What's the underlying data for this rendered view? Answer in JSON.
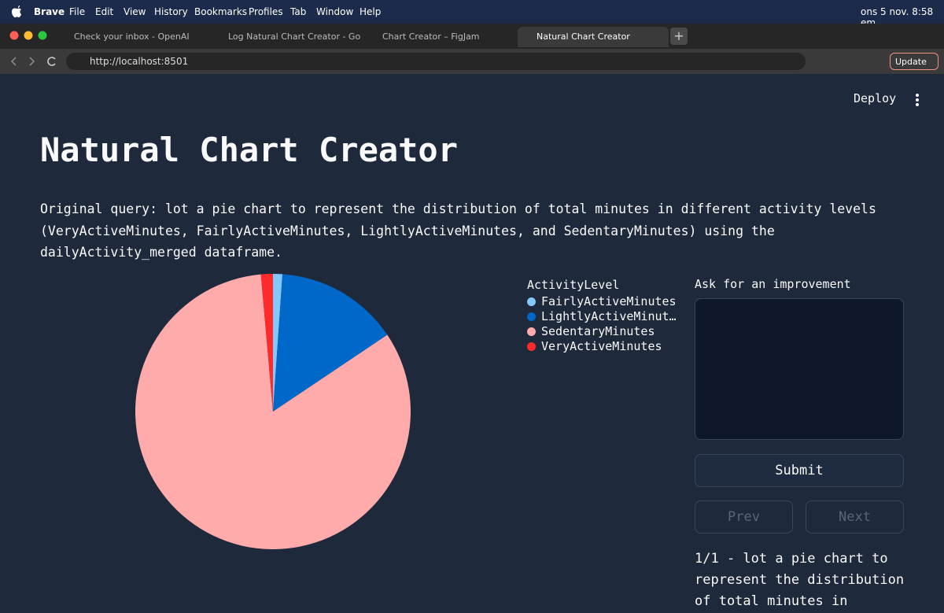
{
  "menubar": {
    "app": "Brave",
    "items": [
      "File",
      "Edit",
      "View",
      "History",
      "Bookmarks",
      "Profiles",
      "Tab",
      "Window",
      "Help"
    ],
    "datetime": "ons 5 nov.  8:58 em"
  },
  "browser": {
    "tabs": [
      "Check your inbox - OpenAI",
      "Log Natural Chart Creator - Google",
      "Chart Creator – FigJam",
      "Natural Chart Creator"
    ],
    "url": "http://localhost:8501",
    "update": "Update"
  },
  "app": {
    "deploy": "Deploy",
    "title": "Natural Chart Creator",
    "query": "Original query: lot a pie chart to represent the distribution of total minutes in different activity levels (VeryActiveMinutes, FairlyActiveMinutes, LightlyActiveMinutes, and SedentaryMinutes) using the dailyActivity_merged dataframe.",
    "improvement_label": "Ask for an improvement",
    "submit": "Submit",
    "prev": "Prev",
    "next": "Next",
    "history": "1/1 - lot a pie chart to represent the distribution of total minutes in"
  },
  "chart_data": {
    "type": "pie",
    "legend_title": "ActivityLevel",
    "categories": [
      "FairlyActiveMinutes",
      "LightlyActiveMinut…",
      "SedentaryMinutes",
      "VeryActiveMinutes"
    ],
    "values": [
      1.1,
      14.5,
      83,
      1.4
    ],
    "colors": [
      "#83c9ff",
      "#0068c9",
      "#ffabab",
      "#ff2b2b"
    ]
  }
}
